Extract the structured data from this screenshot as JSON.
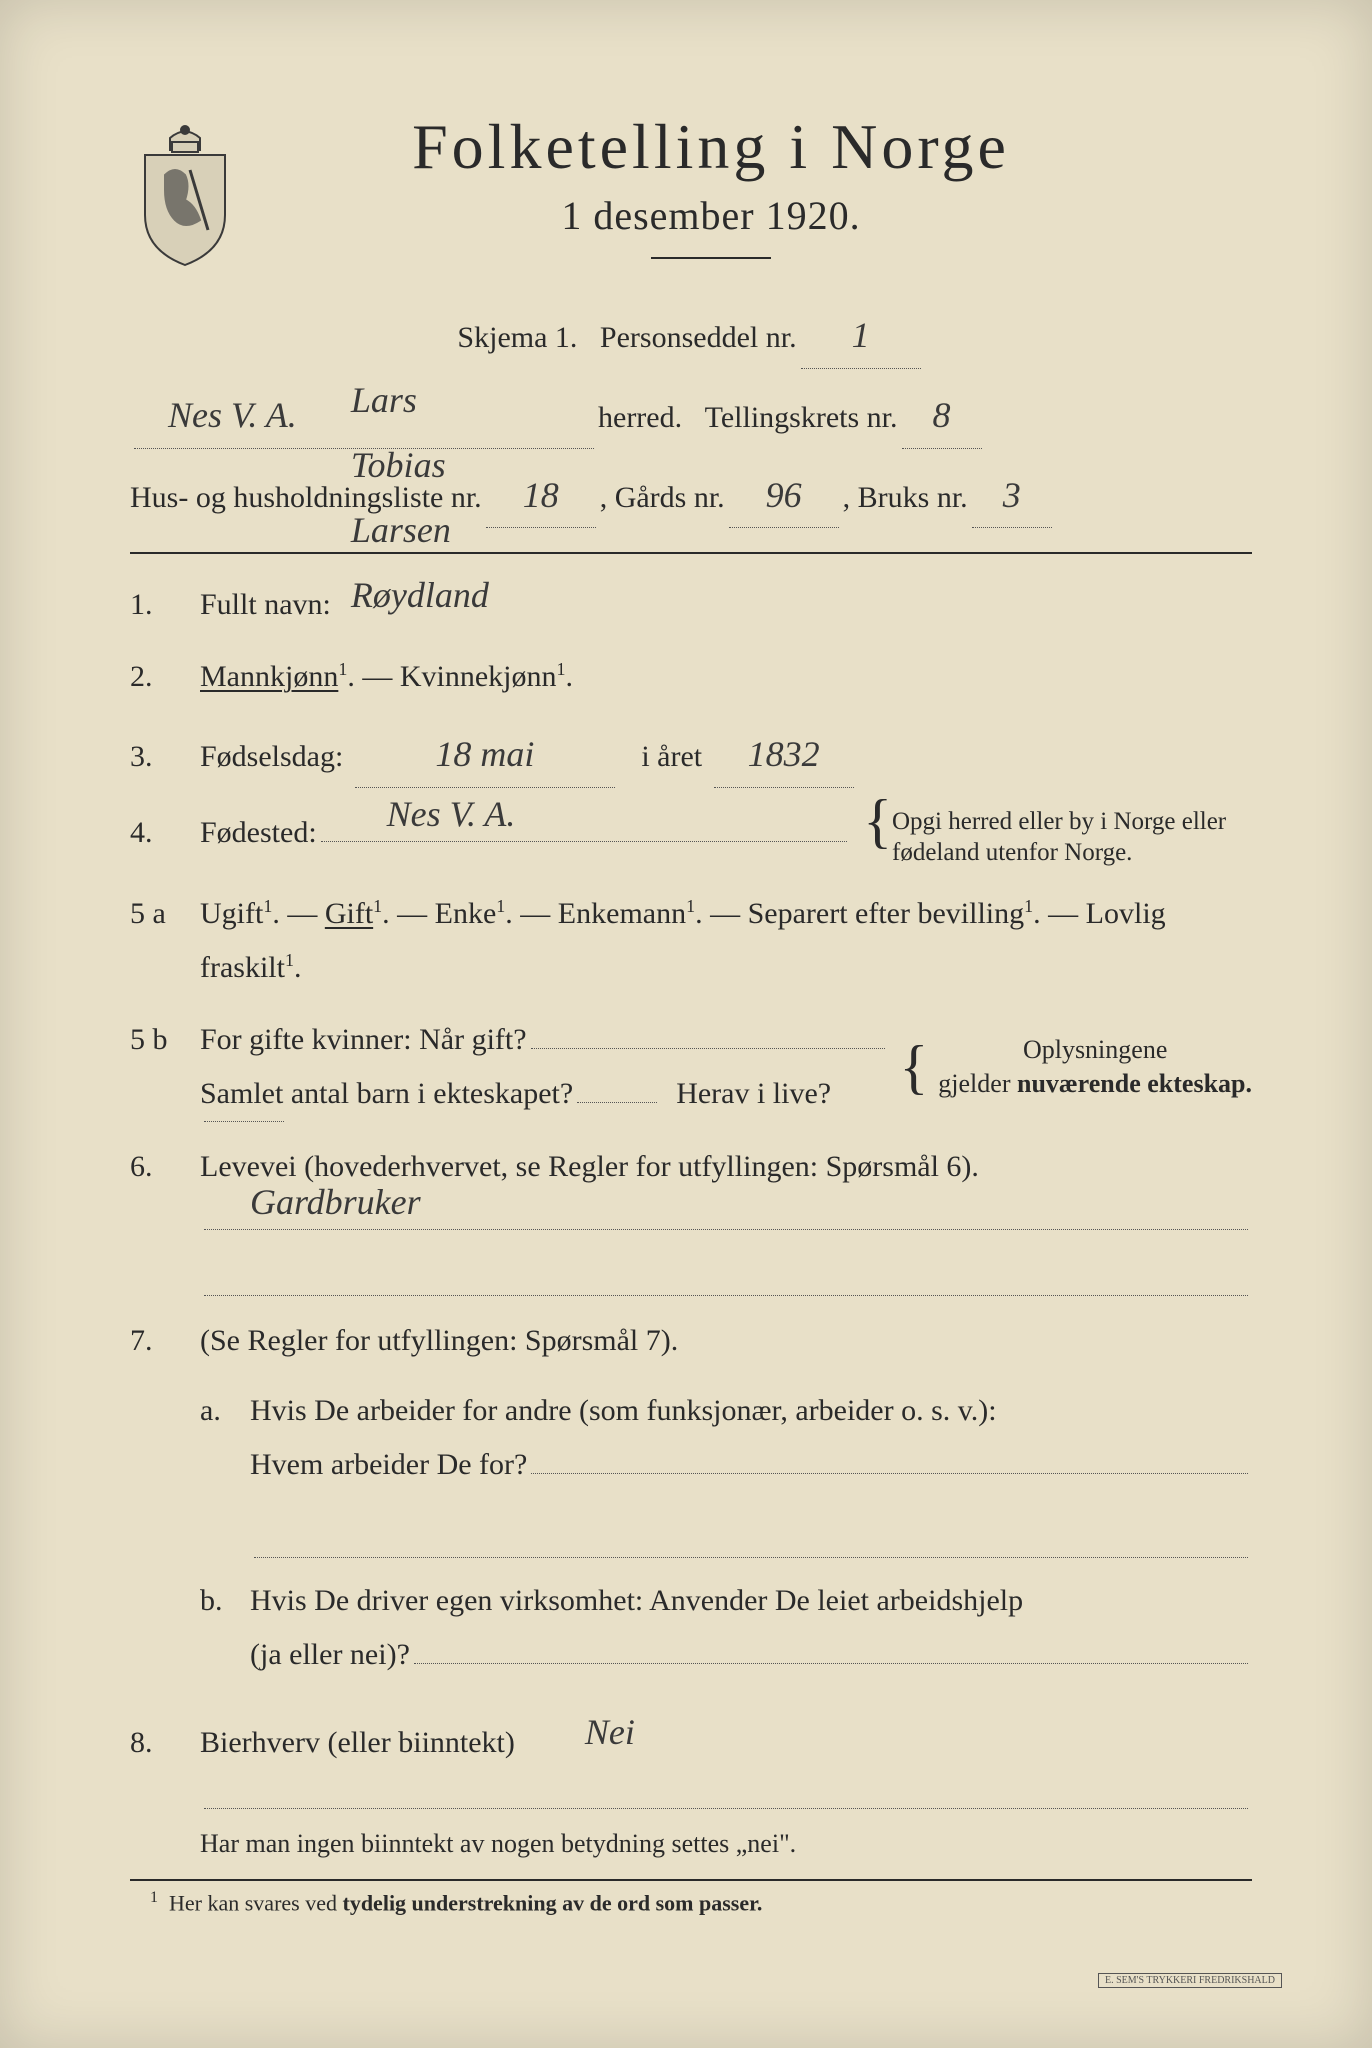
{
  "header": {
    "title": "Folketelling i Norge",
    "subtitle": "1 desember 1920."
  },
  "schema_line": {
    "label_left": "Skjema 1.",
    "label_right": "Personseddel nr.",
    "value": "1"
  },
  "herred_line": {
    "herred_value": "Nes V. A.",
    "label_herred": "herred.",
    "label_krets": "Tellingskrets nr.",
    "krets_value": "8"
  },
  "hus_line": {
    "label_hus": "Hus- og husholdningsliste nr.",
    "hus_value": "18",
    "label_gard": ", Gårds nr.",
    "gard_value": "96",
    "label_bruk": ", Bruks nr.",
    "bruk_value": "3"
  },
  "q1": {
    "num": "1.",
    "label": "Fullt navn:",
    "value": "Lars Tobias Larsen Røydland"
  },
  "q2": {
    "num": "2.",
    "opt1": "Mannkjønn",
    "dash": " — ",
    "opt2": "Kvinnekjønn",
    "sup": "1",
    "period": "."
  },
  "q3": {
    "num": "3.",
    "label1": "Fødselsdag:",
    "value1": "18 mai",
    "label2": "i året",
    "value2": "1832"
  },
  "q4": {
    "num": "4.",
    "label": "Fødested:",
    "value": "Nes V. A.",
    "note": "Opgi herred eller by i Norge eller fødeland utenfor Norge."
  },
  "q5a": {
    "num": "5 a",
    "opts": [
      "Ugift",
      "Gift",
      "Enke",
      "Enkemann",
      "Separert efter bevilling",
      "Lovlig fraskilt"
    ],
    "sup": "1",
    "selected_index": 1
  },
  "q5b": {
    "num": "5 b",
    "line1_label": "For gifte kvinner: Når gift?",
    "line2_label1": "Samlet antal barn i ekteskapet?",
    "line2_label2": "Herav i live?",
    "side_note_1": "Oplysningene",
    "side_note_2": "gjelder ",
    "side_note_2b": "nuværende ekteskap."
  },
  "q6": {
    "num": "6.",
    "label": "Levevei (hovederhvervet, se Regler for utfyllingen: Spørsmål 6).",
    "value": "Gardbruker"
  },
  "q7": {
    "num": "7.",
    "label": "(Se Regler for utfyllingen: Spørsmål 7).",
    "a_num": "a.",
    "a_line1": "Hvis De arbeider for andre (som funksjonær, arbeider o. s. v.):",
    "a_line2": "Hvem arbeider De for?",
    "b_num": "b.",
    "b_line1": "Hvis De driver egen virksomhet: Anvender De leiet arbeidshjelp",
    "b_line2": "(ja eller nei)?"
  },
  "q8": {
    "num": "8.",
    "label": "Bierhverv (eller biinntekt)",
    "value": "Nei"
  },
  "bottom_note": "Har man ingen biinntekt av nogen betydning settes „nei\".",
  "footnote": {
    "num": "1",
    "text_1": "Her kan svares ved ",
    "text_bold": "tydelig understrekning av de ord som passer."
  },
  "printer": "E. SEM'S TRYKKERI\nFREDRIKSHALD",
  "colors": {
    "paper": "#e8e0c8",
    "ink": "#2a2a2a",
    "hand": "#3a3a3a"
  }
}
